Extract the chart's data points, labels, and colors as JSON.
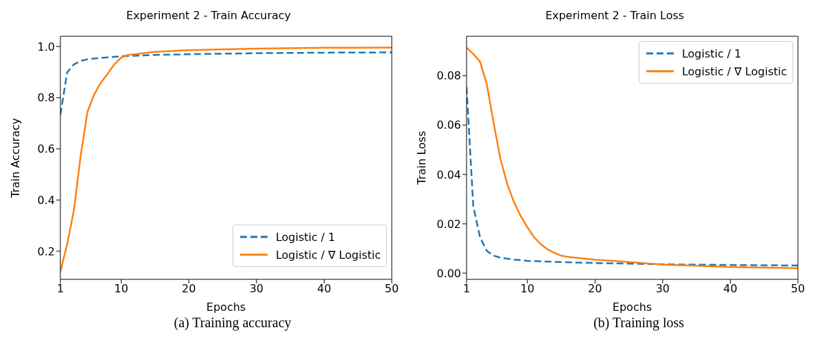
{
  "chart_data": [
    {
      "type": "line",
      "title": "Experiment 2 - Train Accuracy",
      "xlabel": "Epochs",
      "ylabel": "Train Accuracy",
      "annotations": [
        "(a) Training accuracy"
      ],
      "xlim": [
        1,
        50
      ],
      "ylim": [
        0.09,
        1.04
      ],
      "xticks": [
        1,
        10,
        20,
        30,
        40,
        50
      ],
      "yticks": [
        0.2,
        0.4,
        0.6,
        0.8,
        {
          "value": 1,
          "label": "1.0"
        }
      ],
      "legend": "bottom right",
      "marker": "none",
      "series": [
        {
          "name": "Logistic / 1",
          "color": "#1f77b4",
          "line_style": "dashed",
          "x": [
            1,
            2,
            3,
            4,
            5,
            6,
            8,
            10,
            15,
            20,
            30,
            40,
            50
          ],
          "values": [
            0.733,
            0.899,
            0.93,
            0.944,
            0.95,
            0.953,
            0.958,
            0.962,
            0.967,
            0.97,
            0.974,
            0.976,
            0.977
          ]
        },
        {
          "name": "Logistic / ∇ Logistic",
          "color": "#ff7f0e",
          "line_style": "solid",
          "x": [
            1,
            2,
            3,
            4,
            5,
            6,
            7,
            8,
            9,
            10,
            11,
            12,
            15,
            20,
            30,
            40,
            50
          ],
          "values": [
            0.12,
            0.227,
            0.36,
            0.573,
            0.744,
            0.813,
            0.859,
            0.894,
            0.931,
            0.957,
            0.967,
            0.97,
            0.979,
            0.986,
            0.992,
            0.995,
            0.996
          ]
        }
      ]
    },
    {
      "type": "line",
      "title": "Experiment 2 - Train Loss",
      "xlabel": "Epochs",
      "ylabel": "Train Loss",
      "annotations": [
        "(b) Training loss"
      ],
      "xlim": [
        1,
        50
      ],
      "ylim": [
        -0.0025,
        0.096
      ],
      "xticks": [
        1,
        10,
        20,
        30,
        40,
        50
      ],
      "yticks": [
        {
          "value": 0,
          "label": "0.00"
        },
        {
          "value": 0.02,
          "label": "0.02"
        },
        {
          "value": 0.04,
          "label": "0.04"
        },
        {
          "value": 0.06,
          "label": "0.06"
        },
        {
          "value": 0.08,
          "label": "0.08"
        }
      ],
      "legend": "top right",
      "marker": "none",
      "series": [
        {
          "name": "Logistic / 1",
          "color": "#1f77b4",
          "line_style": "dashed",
          "x": [
            1,
            2,
            3,
            4,
            5,
            6,
            8,
            10,
            15,
            20,
            30,
            40,
            50
          ],
          "values": [
            0.0754,
            0.027,
            0.0145,
            0.009,
            0.0071,
            0.0063,
            0.0055,
            0.005,
            0.0045,
            0.0041,
            0.0036,
            0.0033,
            0.0031
          ]
        },
        {
          "name": "Logistic / ∇ Logistic",
          "color": "#ff7f0e",
          "line_style": "solid",
          "x": [
            1,
            2,
            3,
            4,
            5,
            6,
            7,
            8,
            9,
            10,
            11,
            12,
            13,
            14,
            15,
            16,
            20,
            25,
            30,
            40,
            50
          ],
          "values": [
            0.0914,
            0.0888,
            0.0857,
            0.0765,
            0.0609,
            0.0464,
            0.0363,
            0.0289,
            0.0232,
            0.0186,
            0.0145,
            0.0117,
            0.0096,
            0.0082,
            0.0071,
            0.0066,
            0.0055,
            0.0045,
            0.0035,
            0.0025,
            0.002
          ]
        }
      ]
    }
  ]
}
